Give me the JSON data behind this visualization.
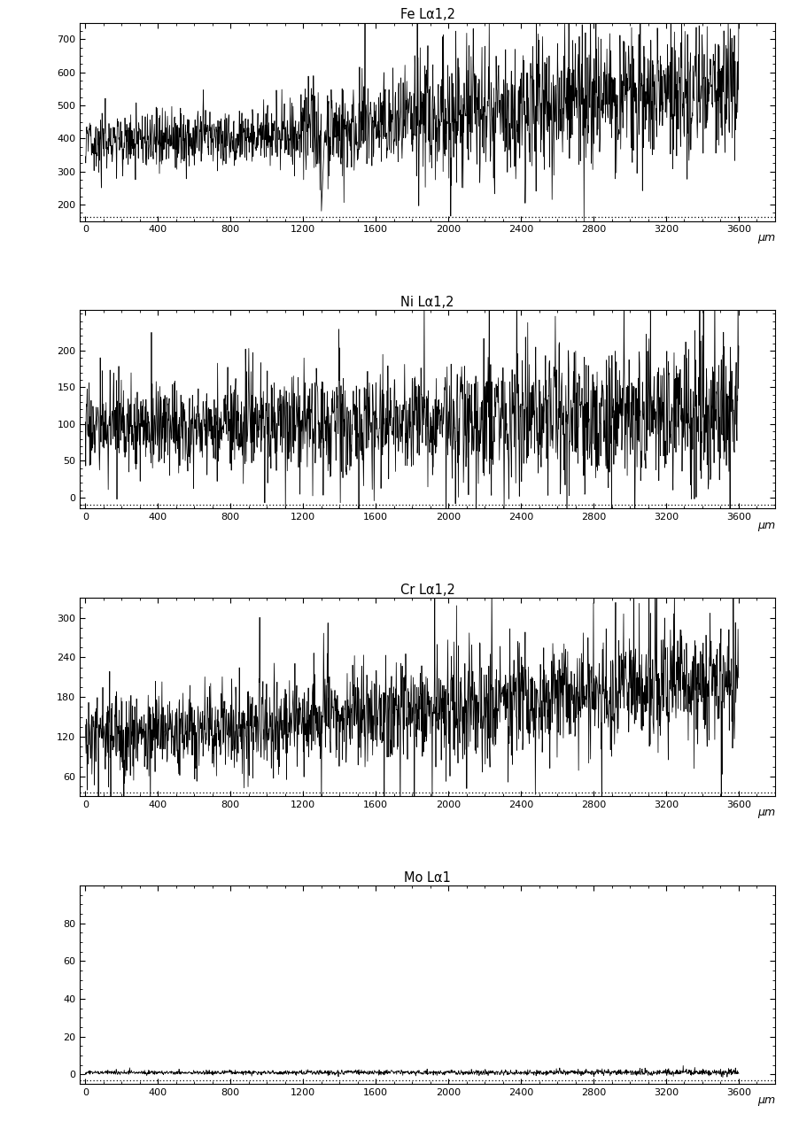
{
  "panels": [
    {
      "title": "Fe Lα1,2",
      "ylim": [
        150,
        750
      ],
      "yticks": [
        200,
        300,
        400,
        500,
        600,
        700
      ],
      "yminor": 4,
      "seed": 42,
      "base_start": 390,
      "base_end": 490,
      "noise_start": 55,
      "noise_end": 90,
      "spike_factor": 2.2,
      "fe_special": true
    },
    {
      "title": "Ni Lα1,2",
      "ylim": [
        -15,
        255
      ],
      "yticks": [
        0,
        50,
        100,
        150,
        200
      ],
      "yminor": 5,
      "seed": 17,
      "base_start": 95,
      "base_end": 110,
      "noise_start": 28,
      "noise_end": 45,
      "spike_factor": 2.0,
      "fe_special": false
    },
    {
      "title": "Cr Lα1,2",
      "ylim": [
        30,
        330
      ],
      "yticks": [
        60,
        120,
        180,
        240,
        300
      ],
      "yminor": 4,
      "seed": 23,
      "base_start": 118,
      "base_end": 175,
      "noise_start": 30,
      "noise_end": 45,
      "spike_factor": 2.0,
      "fe_special": false
    },
    {
      "title": "Mo Lα1",
      "ylim": [
        -5,
        100
      ],
      "yticks": [
        0,
        20,
        40,
        60,
        80
      ],
      "yminor": 4,
      "seed": 55,
      "base_start": 1,
      "base_end": 1,
      "noise_start": 0.5,
      "noise_end": 0.8,
      "spike_factor": 1.0,
      "fe_special": false
    }
  ],
  "xlim": [
    -30,
    3800
  ],
  "xdata_max": 3600,
  "xticks": [
    0,
    400,
    800,
    1200,
    1600,
    2000,
    2400,
    2800,
    3200,
    3600
  ],
  "xlabel": "μm",
  "n_points": 1800,
  "line_color": "#000000",
  "line_width": 0.55,
  "bg_color": "#ffffff",
  "border_color": "#000000",
  "figsize": [
    9.02,
    12.75
  ],
  "dpi": 100
}
